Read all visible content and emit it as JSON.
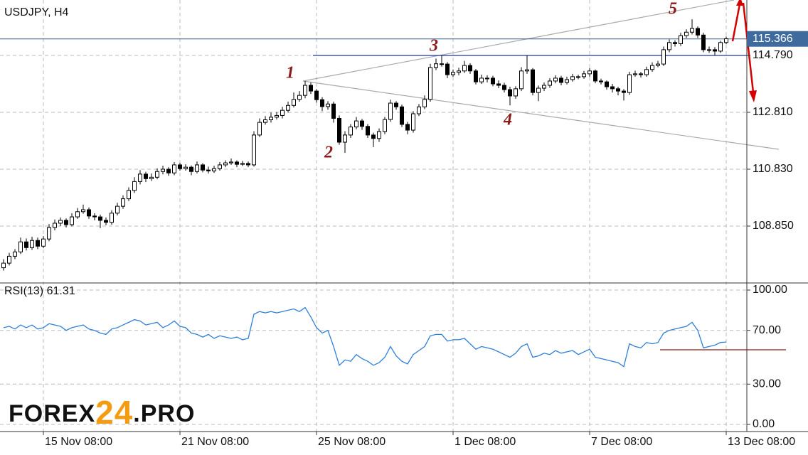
{
  "chart_data": {
    "type": "candlestick",
    "title": "USDJPY, H4",
    "ylim": [
      106.87,
      116.72
    ],
    "yticks": [
      {
        "value": 114.79,
        "label": "114.790"
      },
      {
        "value": 112.81,
        "label": "112.810"
      },
      {
        "value": 110.83,
        "label": "110.830"
      },
      {
        "value": 108.85,
        "label": "108.850"
      }
    ],
    "last_price": 115.366,
    "xlim": [
      0,
      131
    ],
    "xticks": [
      {
        "value": 7,
        "label": "15 Nov 08:00"
      },
      {
        "value": 31,
        "label": "21 Nov 08:00"
      },
      {
        "value": 55,
        "label": "25 Nov 08:00"
      },
      {
        "value": 79,
        "label": "1 Dec 08:00"
      },
      {
        "value": 103,
        "label": "7 Dec 08:00"
      },
      {
        "value": 127,
        "label": "13 Dec 08:00"
      }
    ],
    "bull_color": "#ffffff",
    "bear_color": "#000000",
    "candles": [
      [
        107.4,
        107.7,
        107.3,
        107.56
      ],
      [
        107.56,
        107.92,
        107.48,
        107.8
      ],
      [
        107.8,
        108.05,
        107.7,
        107.95
      ],
      [
        107.95,
        108.45,
        107.88,
        108.3
      ],
      [
        108.3,
        108.42,
        108.0,
        108.1
      ],
      [
        108.1,
        108.48,
        108.02,
        108.35
      ],
      [
        108.35,
        108.45,
        108.05,
        108.15
      ],
      [
        108.15,
        108.5,
        108.08,
        108.4
      ],
      [
        108.4,
        108.92,
        108.32,
        108.8
      ],
      [
        108.8,
        109.08,
        108.7,
        108.95
      ],
      [
        108.95,
        109.15,
        108.85,
        109.05
      ],
      [
        109.05,
        109.12,
        108.8,
        108.9
      ],
      [
        108.9,
        109.3,
        108.84,
        109.17
      ],
      [
        109.17,
        109.48,
        109.1,
        109.35
      ],
      [
        109.35,
        109.6,
        109.28,
        109.42
      ],
      [
        109.42,
        109.5,
        109.1,
        109.2
      ],
      [
        109.2,
        109.3,
        109.05,
        109.17
      ],
      [
        109.17,
        109.25,
        108.78,
        109.05
      ],
      [
        109.05,
        109.15,
        108.88,
        108.98
      ],
      [
        108.98,
        109.4,
        108.9,
        109.3
      ],
      [
        109.3,
        109.66,
        109.22,
        109.54
      ],
      [
        109.54,
        109.92,
        109.45,
        109.8
      ],
      [
        109.8,
        110.2,
        109.72,
        110.09
      ],
      [
        110.09,
        110.55,
        110.0,
        110.4
      ],
      [
        110.4,
        110.8,
        110.3,
        110.66
      ],
      [
        110.66,
        110.74,
        110.38,
        110.5
      ],
      [
        110.5,
        110.68,
        110.42,
        110.55
      ],
      [
        110.55,
        110.86,
        110.48,
        110.75
      ],
      [
        110.75,
        110.95,
        110.65,
        110.83
      ],
      [
        110.83,
        110.9,
        110.6,
        110.7
      ],
      [
        110.7,
        111.08,
        110.62,
        110.98
      ],
      [
        110.98,
        111.05,
        110.78,
        110.85
      ],
      [
        110.85,
        111.0,
        110.78,
        110.9
      ],
      [
        110.9,
        110.96,
        110.62,
        110.75
      ],
      [
        110.75,
        111.1,
        110.68,
        110.98
      ],
      [
        110.98,
        111.04,
        110.72,
        110.8
      ],
      [
        110.8,
        110.92,
        110.68,
        110.77
      ],
      [
        110.77,
        110.95,
        110.7,
        110.85
      ],
      [
        110.85,
        111.08,
        110.78,
        110.98
      ],
      [
        110.98,
        111.14,
        110.9,
        111.05
      ],
      [
        111.05,
        111.2,
        110.98,
        111.08
      ],
      [
        111.08,
        111.14,
        110.9,
        111.0
      ],
      [
        111.0,
        111.12,
        110.94,
        111.03
      ],
      [
        111.03,
        111.1,
        110.9,
        110.98
      ],
      [
        110.98,
        112.15,
        110.92,
        112.02
      ],
      [
        112.02,
        112.6,
        111.95,
        112.46
      ],
      [
        112.46,
        112.68,
        112.38,
        112.55
      ],
      [
        112.55,
        112.8,
        112.45,
        112.64
      ],
      [
        112.64,
        112.82,
        112.56,
        112.7
      ],
      [
        112.7,
        113.0,
        112.6,
        112.88
      ],
      [
        112.88,
        113.18,
        112.8,
        113.05
      ],
      [
        113.05,
        113.5,
        112.98,
        113.26
      ],
      [
        113.26,
        113.55,
        113.18,
        113.4
      ],
      [
        113.4,
        113.9,
        113.3,
        113.75
      ],
      [
        113.75,
        113.85,
        113.45,
        113.55
      ],
      [
        113.55,
        113.62,
        113.15,
        113.25
      ],
      [
        113.25,
        113.34,
        112.85,
        113.01
      ],
      [
        113.01,
        113.2,
        112.9,
        113.1
      ],
      [
        113.1,
        113.18,
        112.45,
        112.6
      ],
      [
        112.6,
        112.7,
        111.68,
        111.77
      ],
      [
        111.77,
        112.15,
        111.4,
        112.02
      ],
      [
        112.02,
        112.4,
        111.92,
        112.3
      ],
      [
        112.3,
        112.65,
        112.22,
        112.51
      ],
      [
        112.51,
        112.58,
        112.2,
        112.32
      ],
      [
        112.32,
        112.4,
        111.92,
        112.02
      ],
      [
        112.02,
        112.1,
        111.6,
        111.9
      ],
      [
        111.9,
        112.25,
        111.78,
        112.14
      ],
      [
        112.14,
        112.65,
        112.05,
        112.56
      ],
      [
        112.56,
        113.25,
        112.48,
        113.13
      ],
      [
        113.13,
        113.2,
        112.9,
        113.0
      ],
      [
        113.0,
        113.08,
        112.3,
        112.39
      ],
      [
        112.39,
        112.48,
        112.05,
        112.19
      ],
      [
        112.19,
        112.85,
        112.1,
        112.76
      ],
      [
        112.76,
        113.1,
        112.68,
        113.0
      ],
      [
        113.0,
        113.4,
        112.92,
        113.26
      ],
      [
        113.26,
        114.5,
        113.18,
        114.37
      ],
      [
        114.37,
        114.68,
        114.28,
        114.5
      ],
      [
        114.5,
        114.79,
        114.4,
        114.49
      ],
      [
        114.49,
        114.56,
        114.0,
        114.12
      ],
      [
        114.12,
        114.3,
        114.05,
        114.2
      ],
      [
        114.2,
        114.36,
        114.1,
        114.25
      ],
      [
        114.25,
        114.6,
        114.18,
        114.44
      ],
      [
        114.44,
        114.52,
        114.15,
        114.25
      ],
      [
        114.25,
        114.32,
        113.78,
        113.87
      ],
      [
        113.87,
        114.12,
        113.8,
        114.0
      ],
      [
        114.0,
        114.1,
        113.85,
        114.0
      ],
      [
        114.0,
        114.08,
        113.72,
        113.8
      ],
      [
        113.8,
        113.92,
        113.65,
        113.75
      ],
      [
        113.75,
        113.84,
        113.5,
        113.6
      ],
      [
        113.6,
        113.7,
        113.05,
        113.38
      ],
      [
        113.38,
        113.72,
        113.28,
        113.63
      ],
      [
        113.63,
        114.38,
        113.55,
        114.25
      ],
      [
        114.25,
        114.79,
        114.15,
        114.29
      ],
      [
        114.29,
        114.35,
        113.4,
        113.5
      ],
      [
        113.5,
        113.74,
        113.2,
        113.65
      ],
      [
        113.65,
        113.85,
        113.55,
        113.75
      ],
      [
        113.75,
        114.0,
        113.66,
        113.9
      ],
      [
        113.9,
        114.1,
        113.82,
        114.0
      ],
      [
        114.0,
        114.08,
        113.75,
        113.85
      ],
      [
        113.85,
        114.05,
        113.78,
        113.95
      ],
      [
        113.95,
        114.15,
        113.88,
        114.05
      ],
      [
        114.05,
        114.12,
        113.96,
        114.05
      ],
      [
        114.05,
        114.25,
        113.98,
        114.15
      ],
      [
        114.15,
        114.35,
        114.05,
        114.25
      ],
      [
        114.25,
        114.3,
        113.82,
        113.9
      ],
      [
        113.9,
        113.98,
        113.78,
        113.87
      ],
      [
        113.87,
        113.92,
        113.6,
        113.7
      ],
      [
        113.7,
        113.8,
        113.5,
        113.63
      ],
      [
        113.63,
        113.7,
        113.4,
        113.55
      ],
      [
        113.55,
        113.62,
        113.22,
        113.5
      ],
      [
        113.5,
        114.22,
        113.42,
        114.12
      ],
      [
        114.12,
        114.26,
        114.05,
        114.15
      ],
      [
        114.15,
        114.22,
        114.02,
        114.12
      ],
      [
        114.12,
        114.4,
        114.05,
        114.3
      ],
      [
        114.3,
        114.55,
        114.22,
        114.44
      ],
      [
        114.44,
        114.6,
        114.38,
        114.49
      ],
      [
        114.49,
        115.1,
        114.42,
        114.99
      ],
      [
        114.99,
        115.35,
        114.9,
        115.24
      ],
      [
        115.24,
        115.32,
        115.1,
        115.2
      ],
      [
        115.2,
        115.58,
        115.12,
        115.48
      ],
      [
        115.48,
        115.7,
        115.4,
        115.6
      ],
      [
        115.6,
        116.05,
        115.52,
        115.73
      ],
      [
        115.73,
        115.8,
        115.4,
        115.5
      ],
      [
        115.5,
        115.58,
        114.9,
        114.99
      ],
      [
        114.99,
        115.1,
        114.88,
        114.99
      ],
      [
        114.99,
        115.08,
        114.8,
        114.94
      ],
      [
        114.94,
        115.3,
        114.88,
        115.24
      ],
      [
        115.24,
        115.45,
        115.18,
        115.37
      ]
    ],
    "annotations": [
      "1",
      "2",
      "3",
      "4",
      "5"
    ],
    "rsi": {
      "label": "RSI(13) 61.31",
      "color": "#2f7fd9",
      "ylim": [
        0,
        100
      ],
      "yticks": [
        {
          "value": 100,
          "label": "100.00"
        },
        {
          "value": 70,
          "label": "70.00"
        },
        {
          "value": 30,
          "label": "30.00"
        },
        {
          "value": 0,
          "label": "0.00"
        }
      ],
      "values": [
        72,
        73,
        71,
        74,
        72,
        74,
        71,
        72,
        75,
        74,
        73,
        70,
        72,
        73,
        74,
        71,
        70,
        68,
        67,
        71,
        72,
        74,
        76,
        78,
        77,
        74,
        75,
        76,
        72,
        74,
        77,
        73,
        72,
        68,
        67,
        65,
        67,
        64,
        66,
        65,
        64,
        65,
        63,
        64,
        82,
        84,
        83,
        84,
        83,
        84,
        85,
        86,
        84,
        87,
        80,
        72,
        68,
        70,
        58,
        44,
        48,
        47,
        52,
        49,
        47,
        44,
        46,
        50,
        58,
        51,
        47,
        45,
        52,
        55,
        58,
        66,
        67,
        67,
        62,
        63,
        63,
        64,
        60,
        56,
        58,
        57,
        56,
        54,
        52,
        50,
        53,
        58,
        60,
        50,
        51,
        53,
        52,
        55,
        53,
        54,
        55,
        52,
        54,
        56,
        50,
        49,
        48,
        47,
        46,
        43,
        60,
        58,
        57,
        61,
        60,
        61,
        68,
        70,
        71,
        72,
        73,
        76,
        70,
        57,
        58,
        59,
        61,
        61.31
      ]
    },
    "logo": [
      "FOREX",
      "24",
      ".PRO"
    ]
  }
}
